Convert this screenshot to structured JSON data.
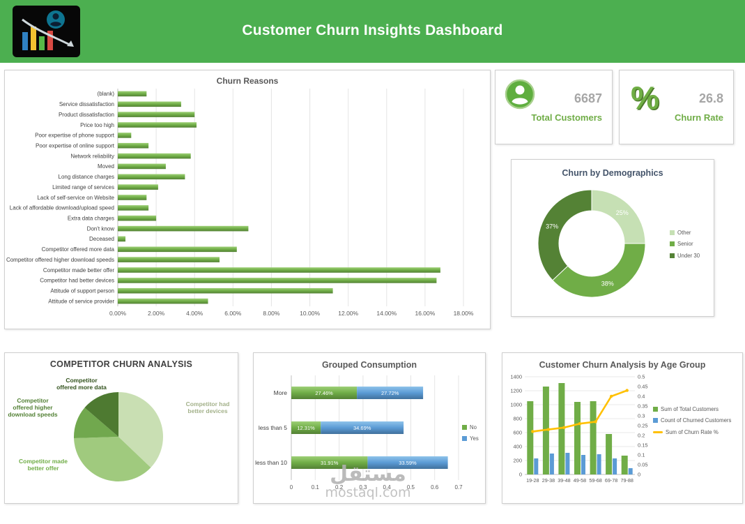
{
  "header": {
    "title": "Customer Churn Insights Dashboard",
    "bg_color": "#4caf50"
  },
  "kpis": [
    {
      "icon": "customers-icon",
      "value": "6687",
      "label": "Total Customers"
    },
    {
      "icon": "percent-icon",
      "icon_glyph": "%",
      "value": "26.8",
      "label": "Churn Rate"
    }
  ],
  "watermark": {
    "arabic": "مستقل",
    "site": "mostaql.com"
  },
  "colors": {
    "header_green": "#4caf50",
    "accent_green": "#70ad47",
    "accent_blue": "#5b9bd5",
    "accent_yellow": "#ffc000",
    "kpi_value_gray": "#a6a6a6"
  },
  "chart_data": [
    {
      "id": "churn_reasons",
      "type": "bar",
      "orientation": "horizontal",
      "title": "Churn Reasons",
      "categories": [
        "(blank)",
        "Service dissatisfaction",
        "Product dissatisfaction",
        "Price too high",
        "Poor expertise of phone support",
        "Poor expertise of online support",
        "Network reliability",
        "Moved",
        "Long distance charges",
        "Limited range of services",
        "Lack of self-service on Website",
        "Lack of affordable download/upload speed",
        "Extra data charges",
        "Don't know",
        "Deceased",
        "Competitor offered more data",
        "Competitor offered higher download speeds",
        "Competitor made better offer",
        "Competitor had better devices",
        "Attitude of support person",
        "Attitude of service provider"
      ],
      "values_pct": [
        1.5,
        3.3,
        4.0,
        4.1,
        0.7,
        1.6,
        3.8,
        2.5,
        3.5,
        2.1,
        1.5,
        1.6,
        2.0,
        6.8,
        0.4,
        6.2,
        5.3,
        16.8,
        16.6,
        11.2,
        4.7
      ],
      "xlim": [
        0,
        18
      ],
      "x_ticks": [
        "0.00%",
        "2.00%",
        "4.00%",
        "6.00%",
        "8.00%",
        "10.00%",
        "12.00%",
        "14.00%",
        "16.00%",
        "18.00%"
      ],
      "bar_color": "#70ad47",
      "grid": true
    },
    {
      "id": "churn_demographics",
      "type": "pie",
      "subtype": "donut",
      "title": "Churn by Demographics",
      "data_labels": "percent",
      "legend_position": "right",
      "slices": [
        {
          "label": "Other",
          "value": 25,
          "color": "#c6e0b4"
        },
        {
          "label": "Senior",
          "value": 38,
          "color": "#70ad47"
        },
        {
          "label": "Under 30",
          "value": 37,
          "color": "#548235"
        }
      ]
    },
    {
      "id": "competitor_churn",
      "type": "pie",
      "title": "COMPETITOR CHURN ANALYSIS",
      "slices": [
        {
          "label": "Competitor had better devices",
          "value": 37.1,
          "color": "#c9dfb3",
          "label_color": "#a3b18a",
          "label_pos": {
            "x": 291,
            "y": 56
          }
        },
        {
          "label": "Competitor made better offer",
          "value": 37.4,
          "color": "#a0ca7e",
          "label_color": "#70ad47",
          "label_pos": {
            "x": 55,
            "y": 138
          }
        },
        {
          "label": "Competitor offered higher download speeds",
          "value": 11.8,
          "color": "#71a84e",
          "label_color": "#538135",
          "label_pos": {
            "x": 40,
            "y": 56
          }
        },
        {
          "label": "Competitor offered more data",
          "value": 13.7,
          "color": "#4e7a31",
          "label_color": "#33531e",
          "label_pos": {
            "x": 110,
            "y": 22
          }
        }
      ]
    },
    {
      "id": "grouped_consumption",
      "type": "bar",
      "subtype": "stacked",
      "orientation": "horizontal",
      "title": "Grouped Consumption",
      "categories": [
        "More",
        "less than 5",
        "less than 10"
      ],
      "series": [
        {
          "name": "No",
          "color": "#70ad47",
          "values": [
            0.2746,
            0.1231,
            0.3191
          ],
          "labels": [
            "27.46%",
            "12.31%",
            "31.91%"
          ]
        },
        {
          "name": "Yes",
          "color": "#5b9bd5",
          "values": [
            0.2772,
            0.3469,
            0.3359
          ],
          "labels": [
            "27.72%",
            "34.69%",
            "33.59%"
          ]
        }
      ],
      "xlim": [
        0,
        0.7
      ],
      "x_ticks": [
        "0",
        "0.1",
        "0.2",
        "0.3",
        "0.4",
        "0.5",
        "0.6",
        "0.7"
      ],
      "legend_position": "right"
    },
    {
      "id": "age_group",
      "type": "bar",
      "subtype": "combo-bar-line",
      "title": "Customer Churn Analysis by Age Group",
      "categories": [
        "19-28",
        "29-38",
        "39-48",
        "49-58",
        "59-68",
        "69-78",
        "79-88"
      ],
      "bar_series": [
        {
          "name": "Sum of Total Customers",
          "color": "#70ad47",
          "values": [
            1050,
            1260,
            1310,
            1040,
            1050,
            580,
            270
          ]
        },
        {
          "name": "Count of Churned Customers",
          "color": "#5b9bd5",
          "values": [
            230,
            300,
            310,
            280,
            290,
            230,
            90
          ]
        }
      ],
      "line_series": {
        "name": "Sum of Churn Rate %",
        "color": "#ffc000",
        "values": [
          0.22,
          0.23,
          0.24,
          0.26,
          0.27,
          0.4,
          0.43
        ]
      },
      "y_left": {
        "min": 0,
        "max": 1400,
        "step": 200
      },
      "y_right": {
        "min": 0,
        "max": 0.5,
        "step": 0.05
      },
      "legend_position": "right"
    }
  ]
}
